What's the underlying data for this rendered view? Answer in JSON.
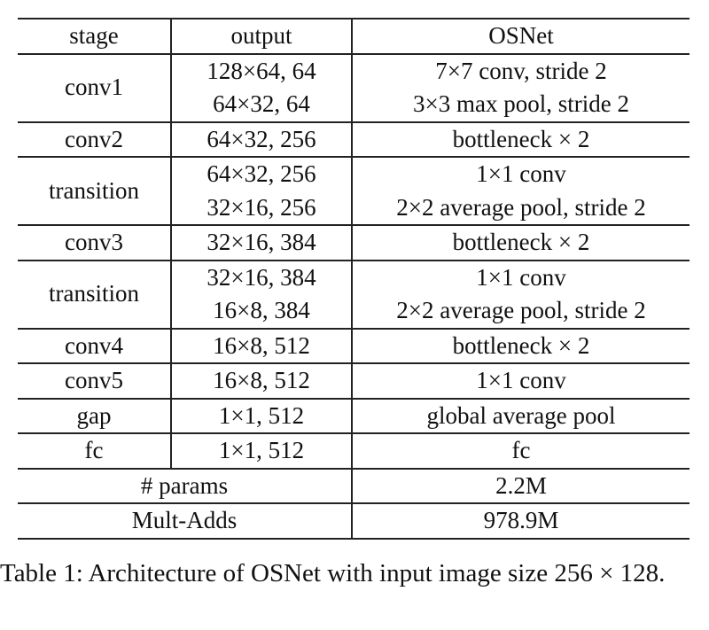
{
  "table": {
    "header": [
      "stage",
      "output",
      "OSNet"
    ],
    "rows": [
      {
        "stage": "conv1",
        "output": [
          "128×64, 64",
          "64×32, 64"
        ],
        "osnet": [
          "7×7 conv, stride 2",
          "3×3 max pool, stride 2"
        ]
      },
      {
        "stage": "conv2",
        "output": [
          "64×32, 256"
        ],
        "osnet": [
          "bottleneck × 2"
        ]
      },
      {
        "stage": "transition",
        "output": [
          "64×32, 256",
          "32×16, 256"
        ],
        "osnet": [
          "1×1 conv",
          "2×2 average pool, stride 2"
        ]
      },
      {
        "stage": "conv3",
        "output": [
          "32×16, 384"
        ],
        "osnet": [
          "bottleneck × 2"
        ]
      },
      {
        "stage": "transition",
        "output": [
          "32×16, 384",
          "16×8, 384"
        ],
        "osnet": [
          "1×1 conv",
          "2×2 average pool, stride 2"
        ]
      },
      {
        "stage": "conv4",
        "output": [
          "16×8, 512"
        ],
        "osnet": [
          "bottleneck × 2"
        ]
      },
      {
        "stage": "conv5",
        "output": [
          "16×8, 512"
        ],
        "osnet": [
          "1×1 conv"
        ]
      },
      {
        "stage": "gap",
        "output": [
          "1×1, 512"
        ],
        "osnet": [
          "global average pool"
        ]
      },
      {
        "stage": "fc",
        "output": [
          "1×1, 512"
        ],
        "osnet": [
          "fc"
        ]
      }
    ],
    "summary": [
      {
        "label": "# params",
        "value": "2.2M"
      },
      {
        "label": "Mult-Adds",
        "value": "978.9M"
      }
    ]
  },
  "caption": "Table 1: Architecture of OSNet with input image size 256 × 128."
}
